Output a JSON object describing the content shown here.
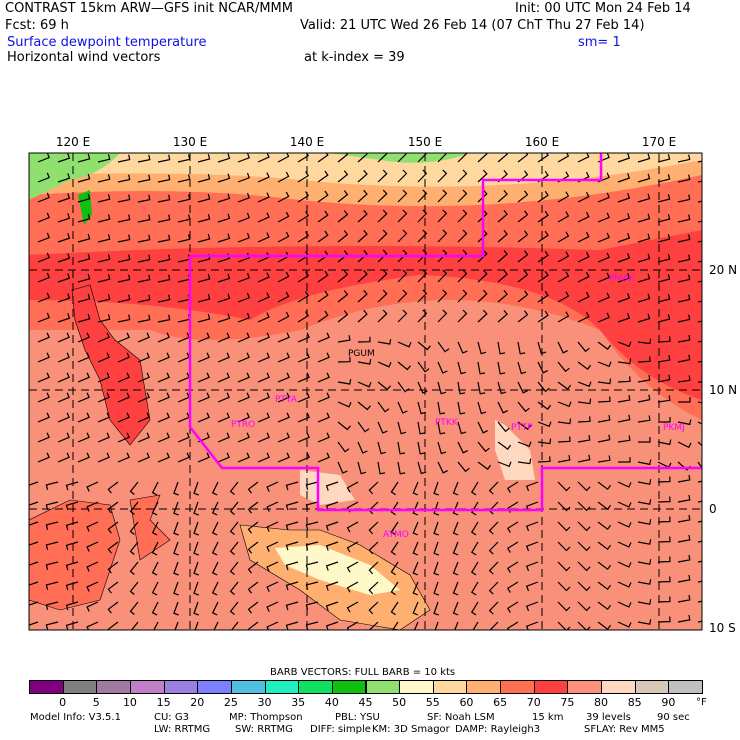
{
  "header": {
    "line1_left": "CONTRAST 15km ARW—GFS init    NCAR/MMM",
    "line1_right": "Init: 00 UTC Mon 24 Feb 14",
    "fcst": "Fcst:   69 h",
    "valid": "Valid: 21 UTC Wed 26 Feb 14 (07 ChT Thu 27 Feb 14)",
    "field1": "Surface dewpoint temperature",
    "smoothing": "sm= 1",
    "field2": "Horizontal wind vectors",
    "level": "at k-index =  39"
  },
  "map": {
    "lon_labels": [
      "120 E",
      "130 E",
      "140 E",
      "150 E",
      "160 E",
      "170 E"
    ],
    "lat_labels": [
      "20 N",
      "10 N",
      "0",
      "10 S"
    ],
    "stations": [
      "PGUM",
      "PTYA",
      "PTRO",
      "PTKK",
      "PTTP",
      "PKMJ",
      "PMAK",
      "AYMO"
    ],
    "boundary_color": "#ff00ff"
  },
  "legend": {
    "barb_title": "BARB VECTORS:  FULL BARB = 10 kts",
    "colors": [
      "#800080",
      "#808080",
      "#a07aa0",
      "#c080c8",
      "#9a80e0",
      "#7a80ff",
      "#50c0e0",
      "#20f0c0",
      "#10e060",
      "#10c010",
      "#90e070",
      "#fff8c8",
      "#ffd8a0",
      "#ffb070",
      "#ff7050",
      "#ff4040",
      "#ff9080",
      "#ffd8c0",
      "#d8c8b8",
      "#c0c0c0"
    ],
    "tick_labels": [
      "0",
      "5",
      "10",
      "15",
      "20",
      "25",
      "30",
      "35",
      "40",
      "45",
      "50",
      "55",
      "60",
      "65",
      "70",
      "75",
      "80",
      "85",
      "90"
    ],
    "unit": "°F"
  },
  "model_info": {
    "line1": [
      "Model Info: V3.5.1",
      "CU: G3",
      "MP: Thompson",
      "PBL: YSU",
      "SF: Noah LSM",
      "15 km",
      "39 levels",
      "90 sec"
    ],
    "line2": [
      "LW: RRTMG",
      "SW: RRTMG",
      "DIFF: simple",
      "KM: 3D Smagor",
      "DAMP: Rayleigh3",
      "SFLAY: Rev MM5"
    ]
  }
}
